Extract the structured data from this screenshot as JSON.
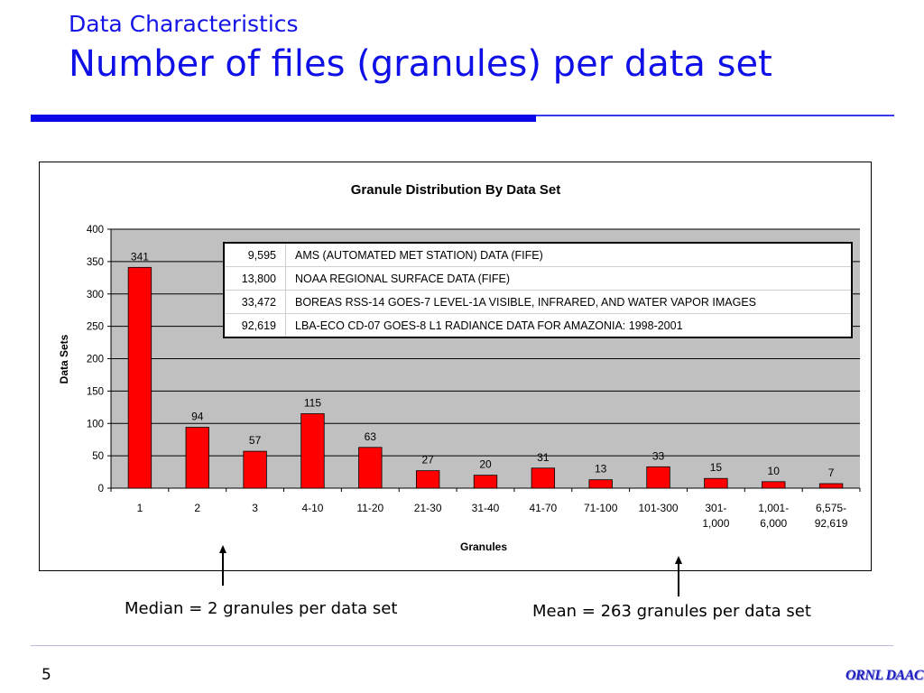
{
  "slide": {
    "subtitle": "Data Characteristics",
    "title": "Number of files (granules) per data set",
    "page_number": "5",
    "logo_text": "ORNL DAAC"
  },
  "notes": {
    "median": "Median = 2 granules per data set",
    "mean": "Mean = 263 granules per data set"
  },
  "chart_data": {
    "type": "bar",
    "title": "Granule Distribution By Data Set",
    "xlabel": "Granules",
    "ylabel": "Data Sets",
    "categories": [
      "1",
      "2",
      "3",
      "4-10",
      "11-20",
      "21-30",
      "31-40",
      "41-70",
      "71-100",
      "101-300",
      "301-\n1,000",
      "1,001-\n6,000",
      "6,575-\n92,619"
    ],
    "values": [
      341,
      94,
      57,
      115,
      63,
      27,
      20,
      31,
      13,
      33,
      15,
      10,
      7
    ],
    "ylim": [
      0,
      400
    ],
    "yticks": [
      0,
      50,
      100,
      150,
      200,
      250,
      300,
      350,
      400
    ],
    "grid": true,
    "bar_color": "#ff0000",
    "plot_background": "#c0c0c0",
    "inset_table": [
      {
        "granules": "9,595",
        "data_set": "AMS (AUTOMATED MET STATION) DATA  (FIFE)"
      },
      {
        "granules": "13,800",
        "data_set": "NOAA  REGIONAL SURFACE DATA (FIFE)"
      },
      {
        "granules": "33,472",
        "data_set": "BOREAS RSS-14 GOES-7 LEVEL-1A VISIBLE, INFRARED, AND WATER VAPOR IMAGES"
      },
      {
        "granules": "92,619",
        "data_set": "LBA-ECO CD-07 GOES-8 L1 RADIANCE DATA FOR AMAZONIA: 1998-2001"
      }
    ]
  }
}
